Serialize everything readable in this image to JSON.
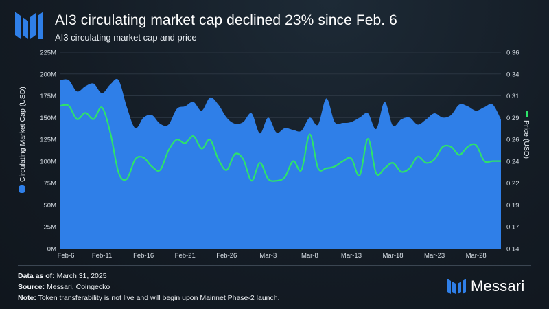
{
  "header": {
    "title": "AI3 circulating market cap declined 23% since Feb. 6",
    "subtitle": "AI3 circulating market cap and price"
  },
  "colors": {
    "area": "#2f7fe8",
    "line": "#2ee36a",
    "logo": "#2f7fe8"
  },
  "chart_data": {
    "type": "area",
    "left_axis": {
      "label": "Circulating Market Cap (USD)",
      "range": [
        0,
        225000000
      ],
      "ticks": [
        "0M",
        "25M",
        "50M",
        "75M",
        "100M",
        "125M",
        "150M",
        "175M",
        "200M",
        "225M"
      ]
    },
    "right_axis": {
      "label": "Price (USD)",
      "range": [
        0.14,
        0.36
      ],
      "ticks": [
        "0.14",
        "0.17",
        "0.19",
        "0.22",
        "0.24",
        "0.26",
        "0.29",
        "0.31",
        "0.34",
        "0.36"
      ]
    },
    "x_ticks": [
      "Feb-6",
      "Feb-11",
      "Feb-16",
      "Feb-21",
      "Feb-26",
      "Mar-3",
      "Mar-8",
      "Mar-13",
      "Mar-18",
      "Mar-23",
      "Mar-28"
    ],
    "x_range": [
      "2025-02-06",
      "2025-03-31"
    ],
    "legend": "left and right axis markers",
    "series": [
      {
        "name": "Circulating Market Cap (USD)",
        "axis": "left",
        "style": "area",
        "x": [
          "2025-02-06",
          "2025-02-07",
          "2025-02-08",
          "2025-02-09",
          "2025-02-10",
          "2025-02-11",
          "2025-02-12",
          "2025-02-13",
          "2025-02-14",
          "2025-02-15",
          "2025-02-16",
          "2025-02-17",
          "2025-02-18",
          "2025-02-19",
          "2025-02-20",
          "2025-02-21",
          "2025-02-22",
          "2025-02-23",
          "2025-02-24",
          "2025-02-25",
          "2025-02-26",
          "2025-02-27",
          "2025-02-28",
          "2025-03-01",
          "2025-03-02",
          "2025-03-03",
          "2025-03-04",
          "2025-03-05",
          "2025-03-06",
          "2025-03-07",
          "2025-03-08",
          "2025-03-09",
          "2025-03-10",
          "2025-03-11",
          "2025-03-12",
          "2025-03-13",
          "2025-03-14",
          "2025-03-15",
          "2025-03-16",
          "2025-03-17",
          "2025-03-18",
          "2025-03-19",
          "2025-03-20",
          "2025-03-21",
          "2025-03-22",
          "2025-03-23",
          "2025-03-24",
          "2025-03-25",
          "2025-03-26",
          "2025-03-27",
          "2025-03-28",
          "2025-03-29",
          "2025-03-30",
          "2025-03-31"
        ],
        "values": [
          193,
          193,
          180,
          186,
          189,
          178,
          188,
          193,
          162,
          138,
          150,
          153,
          143,
          142,
          160,
          163,
          168,
          158,
          173,
          165,
          150,
          143,
          145,
          155,
          132,
          150,
          133,
          138,
          136,
          135,
          150,
          142,
          172,
          145,
          144,
          145,
          150,
          155,
          137,
          168,
          141,
          148,
          150,
          142,
          148,
          155,
          150,
          153,
          165,
          163,
          158,
          162,
          165,
          148
        ]
      },
      {
        "name": "Price (USD)",
        "axis": "right",
        "style": "line",
        "x": [
          "2025-02-06",
          "2025-02-07",
          "2025-02-08",
          "2025-02-09",
          "2025-02-10",
          "2025-02-11",
          "2025-02-12",
          "2025-02-13",
          "2025-02-14",
          "2025-02-15",
          "2025-02-16",
          "2025-02-17",
          "2025-02-18",
          "2025-02-19",
          "2025-02-20",
          "2025-02-21",
          "2025-02-22",
          "2025-02-23",
          "2025-02-24",
          "2025-02-25",
          "2025-02-26",
          "2025-02-27",
          "2025-02-28",
          "2025-03-01",
          "2025-03-02",
          "2025-03-03",
          "2025-03-04",
          "2025-03-05",
          "2025-03-06",
          "2025-03-07",
          "2025-03-08",
          "2025-03-09",
          "2025-03-10",
          "2025-03-11",
          "2025-03-12",
          "2025-03-13",
          "2025-03-14",
          "2025-03-15",
          "2025-03-16",
          "2025-03-17",
          "2025-03-18",
          "2025-03-19",
          "2025-03-20",
          "2025-03-21",
          "2025-03-22",
          "2025-03-23",
          "2025-03-24",
          "2025-03-25",
          "2025-03-26",
          "2025-03-27",
          "2025-03-28",
          "2025-03-29",
          "2025-03-30",
          "2025-03-31"
        ],
        "values": [
          0.3,
          0.3,
          0.285,
          0.292,
          0.285,
          0.298,
          0.27,
          0.225,
          0.218,
          0.24,
          0.242,
          0.232,
          0.228,
          0.25,
          0.262,
          0.258,
          0.266,
          0.252,
          0.262,
          0.24,
          0.228,
          0.246,
          0.24,
          0.216,
          0.236,
          0.218,
          0.216,
          0.22,
          0.238,
          0.228,
          0.268,
          0.23,
          0.23,
          0.232,
          0.238,
          0.241,
          0.222,
          0.263,
          0.224,
          0.23,
          0.236,
          0.226,
          0.23,
          0.243,
          0.236,
          0.24,
          0.254,
          0.254,
          0.245,
          0.254,
          0.256,
          0.238,
          0.238,
          0.238
        ]
      }
    ]
  },
  "footer": {
    "data_as_of_label": "Data as of:",
    "data_as_of_value": "March 31, 2025",
    "source_label": "Source:",
    "source_value": "Messari, Coingecko",
    "note_label": "Note:",
    "note_value": "Token transferability is not live and will begin upon Mainnet Phase-2 launch."
  },
  "brand": {
    "name": "Messari"
  }
}
